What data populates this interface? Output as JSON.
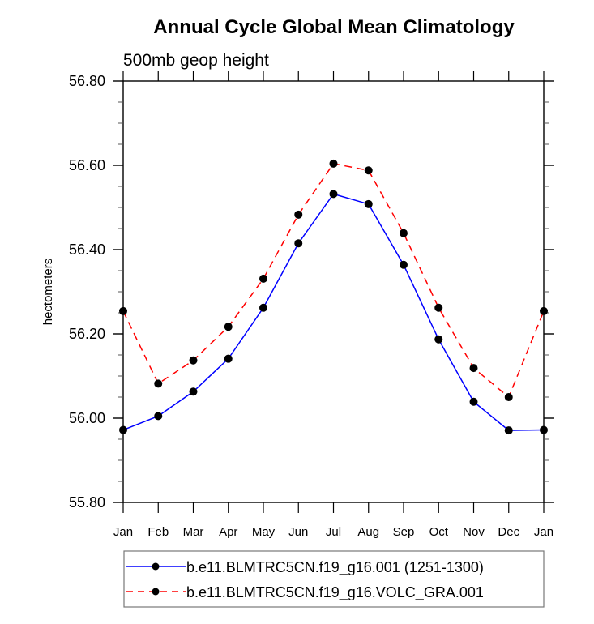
{
  "chart_data": {
    "type": "line",
    "title": "Annual Cycle Global Mean Climatology",
    "subtitle": "500mb geop height",
    "xlabel": "",
    "ylabel": "hectometers",
    "categories": [
      "Jan",
      "Feb",
      "Mar",
      "Apr",
      "May",
      "Jun",
      "Jul",
      "Aug",
      "Sep",
      "Oct",
      "Nov",
      "Dec",
      "Jan"
    ],
    "ylim": [
      55.8,
      56.8
    ],
    "yticks": [
      "55.80",
      "56.00",
      "56.20",
      "56.40",
      "56.60",
      "56.80"
    ],
    "ytick_values": [
      55.8,
      56.0,
      56.2,
      56.4,
      56.6,
      56.8
    ],
    "yminor_step": 0.05,
    "grid": false,
    "legend_position": "bottom",
    "series": [
      {
        "name": "b.e11.BLMTRC5CN.f19_g16.001 (1251-1300)",
        "color": "#0000ff",
        "line_style": "solid",
        "marker": "filled-circle",
        "values": [
          55.972,
          56.005,
          56.063,
          56.141,
          56.262,
          56.415,
          56.532,
          56.508,
          56.364,
          56.187,
          56.039,
          55.971,
          55.972
        ]
      },
      {
        "name": "b.e11.BLMTRC5CN.f19_g16.VOLC_GRA.001",
        "color": "#ff0000",
        "line_style": "dashed",
        "marker": "filled-circle",
        "values": [
          56.254,
          56.082,
          56.137,
          56.217,
          56.331,
          56.483,
          56.604,
          56.588,
          56.439,
          56.262,
          56.119,
          56.05,
          56.254
        ]
      }
    ]
  }
}
